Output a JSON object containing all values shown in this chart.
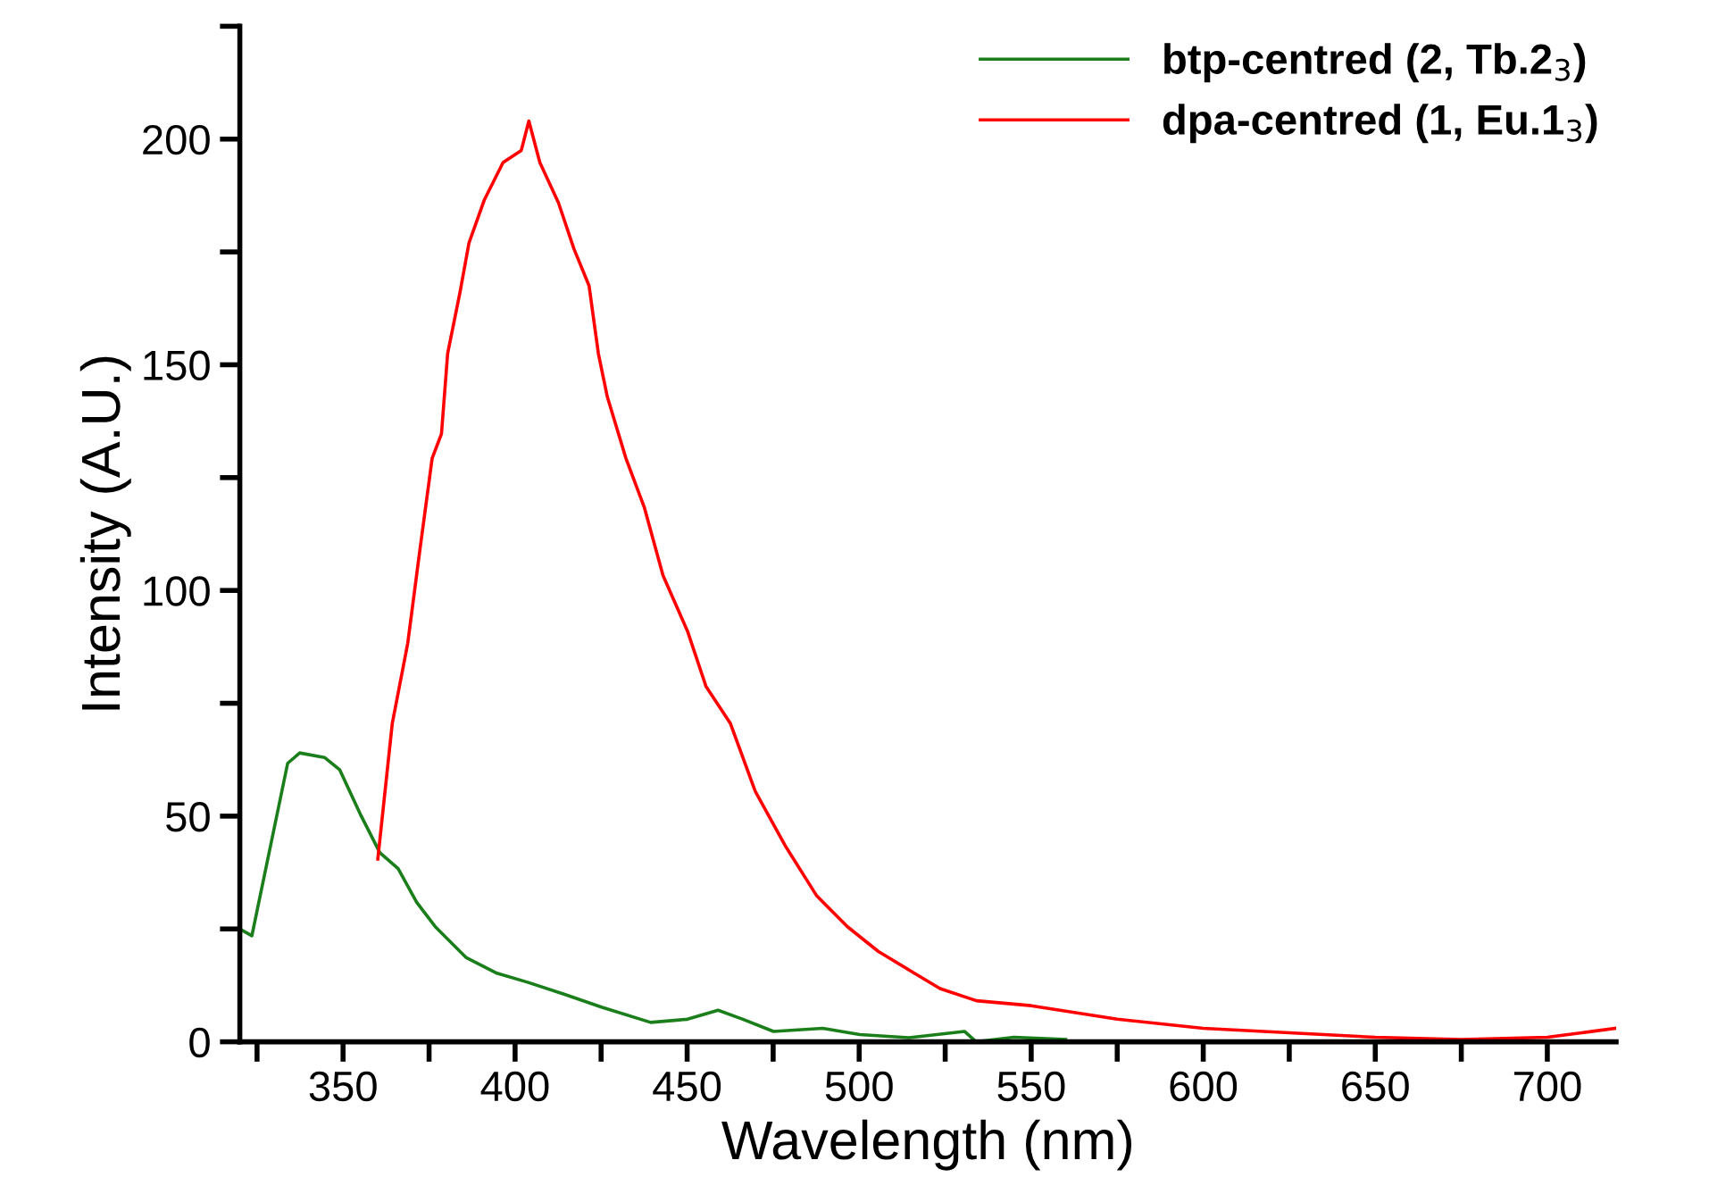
{
  "chart_data": {
    "type": "line",
    "xlabel": "Wavelength (nm)",
    "ylabel": "Intensity (A.U.)",
    "xlim": [
      320,
      720
    ],
    "xticks": [
      {
        "value": 325,
        "label": null
      },
      350,
      {
        "value": 375,
        "label": null
      },
      400,
      {
        "value": 425,
        "label": null
      },
      450,
      {
        "value": 475,
        "label": null
      },
      500,
      {
        "value": 525,
        "label": null
      },
      550,
      {
        "value": 575,
        "label": null
      },
      600,
      {
        "value": 625,
        "label": null
      },
      650,
      {
        "value": 675,
        "label": null
      },
      700
    ],
    "ylim": [
      0,
      225
    ],
    "yticks": [
      0,
      {
        "value": 25,
        "label": null
      },
      50,
      {
        "value": 75,
        "label": null
      },
      100,
      {
        "value": 125,
        "label": null
      },
      150,
      {
        "value": 175,
        "label": null
      },
      200,
      {
        "value": 225,
        "label": null
      }
    ],
    "legend": "top right",
    "grid": false,
    "marker": "none",
    "line_style": "solid",
    "series": [
      {
        "name": "btp-centred (2, Tb.2$_{3}$)",
        "color": "#1a7f1a",
        "x": [
          320,
          323.5,
          333.9,
          337.4,
          344.6,
          349,
          355.3,
          360.7,
          366,
          371.4,
          376.8,
          385.7,
          394.7,
          403.6,
          414.4,
          425.1,
          439.4,
          450.1,
          459,
          466.2,
          475.1,
          489.4,
          500.2,
          514.5,
          530.6,
          534,
          545,
          560
        ],
        "values": [
          25,
          23.5,
          61.7,
          64,
          63,
          60.3,
          50,
          41.9,
          38.4,
          30.9,
          25.5,
          18.7,
          15.2,
          13.2,
          10.5,
          7.7,
          4.3,
          5,
          7,
          5,
          2.3,
          3,
          1.6,
          0.9,
          2.3,
          0,
          1,
          0.5
        ]
      },
      {
        "name": "dpa-centred (1, Eu.1$_{3}$)",
        "color": "#ff0000",
        "x": [
          360.1,
          364.3,
          368.8,
          372.3,
          375.9,
          378.6,
          380.4,
          384,
          386.6,
          391.1,
          396.5,
          401.8,
          404,
          407.2,
          412.6,
          417.1,
          421.5,
          424.2,
          426.8,
          432.2,
          437.6,
          443,
          450.1,
          455.5,
          462.6,
          469.8,
          478.7,
          487.7,
          496.6,
          505.6,
          514.5,
          523.5,
          534.1,
          550,
          575,
          600,
          625,
          650,
          675,
          700,
          710,
          720
        ],
        "values": [
          40.5,
          70.5,
          88.3,
          108.8,
          129.3,
          134.7,
          152.5,
          166.1,
          177,
          186.6,
          194.8,
          197.5,
          204,
          194.8,
          185.9,
          175.7,
          167.5,
          152.5,
          142.9,
          129.3,
          118.3,
          103.3,
          91,
          78.7,
          70.5,
          55.5,
          43.2,
          32.3,
          25.5,
          20,
          15.9,
          11.8,
          9.1,
          8,
          5,
          3,
          2,
          1,
          0.5,
          1,
          2,
          3
        ]
      }
    ]
  }
}
